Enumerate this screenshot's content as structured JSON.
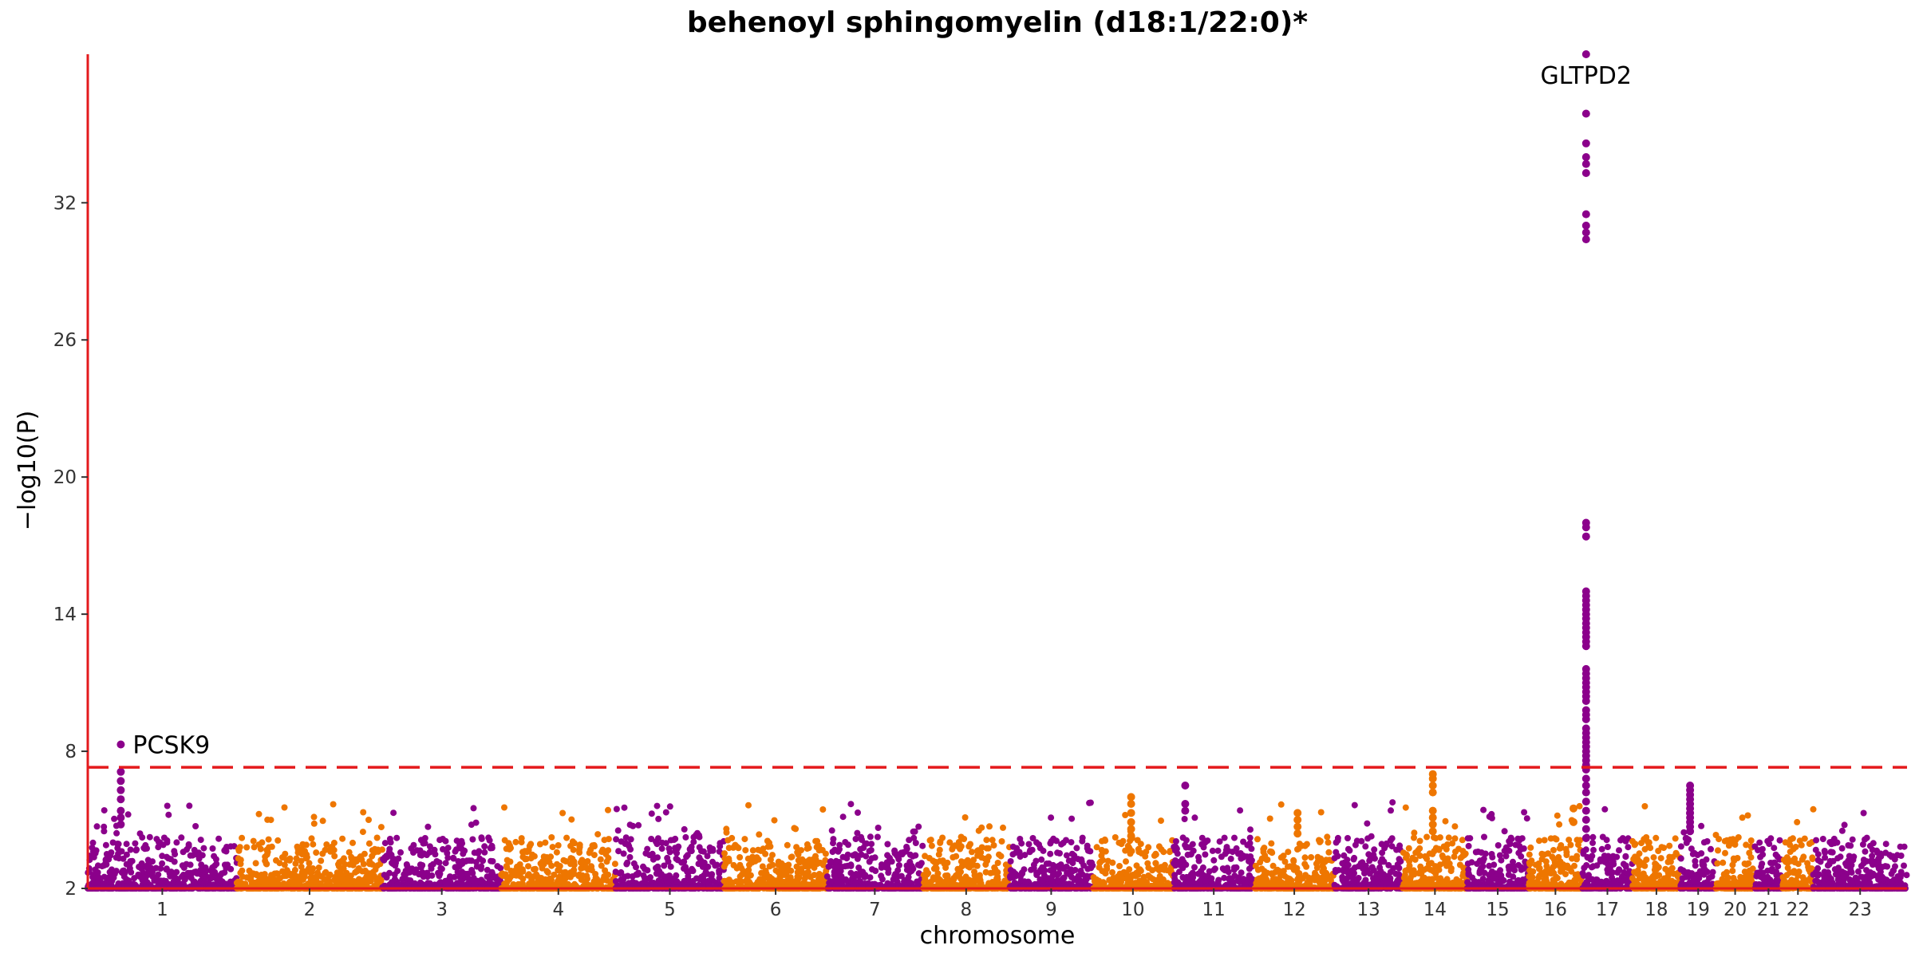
{
  "chart_data": {
    "type": "scatter",
    "title": "behenoyl sphingomyelin (d18:1/22:0)*",
    "xlabel": "chromosome",
    "ylabel": "−log10(P)",
    "ylim": [
      2,
      38.5
    ],
    "yticks": [
      2,
      8,
      14,
      20,
      26,
      32
    ],
    "significance_line": 7.3,
    "colors": {
      "odd": "#8B008B",
      "even": "#EE7600",
      "axis": "#E41A1C",
      "threshold": "#E41A1C"
    },
    "chromosomes": [
      {
        "label": "1",
        "start": 0,
        "end": 248
      },
      {
        "label": "2",
        "start": 248,
        "end": 490
      },
      {
        "label": "3",
        "start": 490,
        "end": 688
      },
      {
        "label": "4",
        "start": 688,
        "end": 878
      },
      {
        "label": "5",
        "start": 878,
        "end": 1059
      },
      {
        "label": "6",
        "start": 1059,
        "end": 1230
      },
      {
        "label": "7",
        "start": 1230,
        "end": 1389
      },
      {
        "label": "8",
        "start": 1389,
        "end": 1534
      },
      {
        "label": "9",
        "start": 1534,
        "end": 1672
      },
      {
        "label": "10",
        "start": 1672,
        "end": 1806
      },
      {
        "label": "11",
        "start": 1806,
        "end": 1941
      },
      {
        "label": "12",
        "start": 1941,
        "end": 2074
      },
      {
        "label": "13",
        "start": 2074,
        "end": 2188
      },
      {
        "label": "14",
        "start": 2188,
        "end": 2295
      },
      {
        "label": "15",
        "start": 2295,
        "end": 2397
      },
      {
        "label": "16",
        "start": 2397,
        "end": 2487
      },
      {
        "label": "17",
        "start": 2487,
        "end": 2570
      },
      {
        "label": "18",
        "start": 2570,
        "end": 2650
      },
      {
        "label": "19",
        "start": 2650,
        "end": 2709
      },
      {
        "label": "20",
        "start": 2709,
        "end": 2773
      },
      {
        "label": "21",
        "start": 2773,
        "end": 2820
      },
      {
        "label": "22",
        "start": 2820,
        "end": 2871
      },
      {
        "label": "23",
        "start": 2871,
        "end": 3027
      }
    ],
    "peaks": [
      {
        "chrom": "1",
        "pos": 55,
        "values": [
          8.3,
          7.1,
          6.7,
          6.3,
          5.9,
          5.4,
          5.1,
          4.8
        ]
      },
      {
        "chrom": "10",
        "pos": 64,
        "values": [
          6.0,
          5.7,
          5.3,
          4.9,
          4.6,
          4.3
        ]
      },
      {
        "chrom": "11",
        "pos": 20,
        "values": [
          6.5,
          5.7,
          5.4
        ]
      },
      {
        "chrom": "12",
        "pos": 72,
        "values": [
          5.3,
          5.0,
          4.7,
          4.4
        ]
      },
      {
        "chrom": "14",
        "pos": 50,
        "values": [
          7.0,
          6.8,
          6.5,
          6.2,
          5.4,
          5.1,
          4.8,
          4.5
        ]
      },
      {
        "chrom": "16",
        "pos": 75,
        "values": [
          5.5,
          4.9
        ]
      },
      {
        "chrom": "17",
        "pos": 6,
        "values": [
          38.5,
          35.9,
          34.6,
          34.0,
          33.7,
          33.3,
          31.5,
          31.0,
          30.7,
          30.4,
          18.0,
          17.8,
          17.4,
          15.0,
          14.8,
          14.6,
          14.4,
          14.2,
          14.0,
          13.8,
          13.6,
          13.4,
          13.2,
          13.0,
          12.8,
          12.6,
          11.6,
          11.4,
          11.2,
          11.0,
          10.8,
          10.6,
          10.4,
          10.2,
          9.8,
          9.6,
          9.4,
          9.0,
          8.8,
          8.6,
          8.4,
          8.2,
          8.0,
          7.8,
          7.6,
          7.4,
          7.2,
          6.8,
          6.5,
          6.2,
          5.8,
          5.4,
          5.0,
          4.6,
          4.2
        ]
      },
      {
        "chrom": "19",
        "pos": 16,
        "values": [
          6.5,
          6.3,
          6.1,
          5.9,
          5.7,
          5.5,
          5.3,
          5.1,
          4.9,
          4.7,
          4.5
        ]
      }
    ],
    "annotations": [
      {
        "text": "PCSK9",
        "chrom": "1",
        "pos": 55,
        "y": 8.3
      },
      {
        "text": "GLTPD2",
        "chrom": "17",
        "pos": 6,
        "y": 38.5
      }
    ]
  }
}
